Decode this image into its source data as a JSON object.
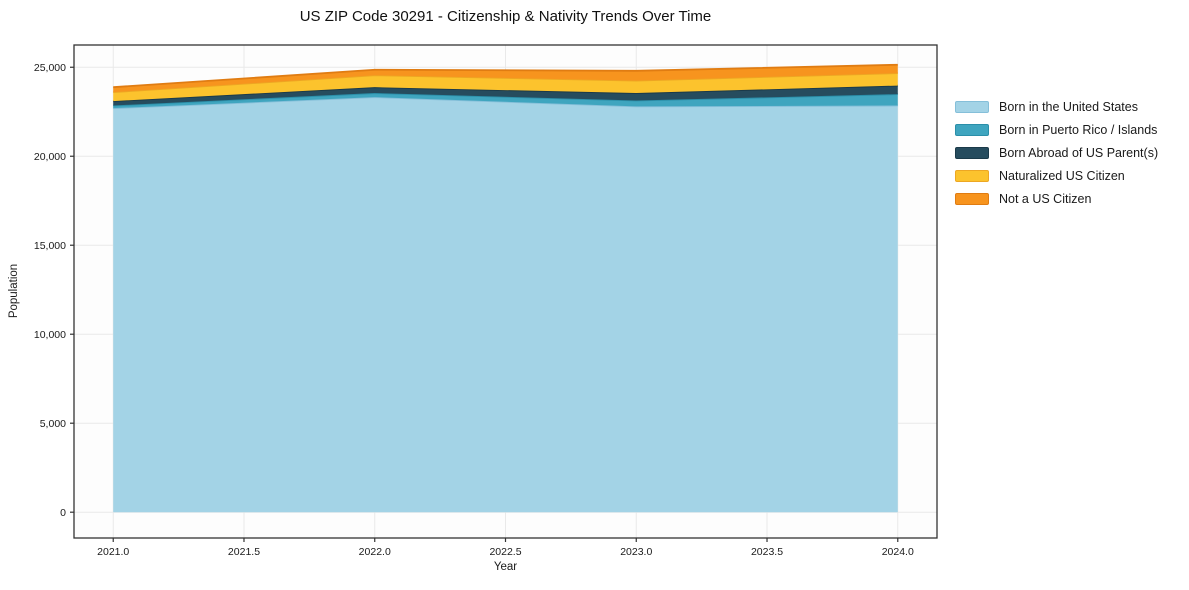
{
  "title": "US ZIP Code 30291 - Citizenship & Nativity Trends Over Time",
  "chart_data": {
    "type": "area",
    "stacked": true,
    "x": [
      2021,
      2022,
      2023,
      2024
    ],
    "series": [
      {
        "key": "born-in-us",
        "name": "Born in the United States",
        "values": [
          22700,
          23320,
          22800,
          22850
        ],
        "fill": "#a3d3e6",
        "edge": "#85bfd9"
      },
      {
        "key": "puerto-rico",
        "name": "Born in Puerto Rico / Islands",
        "values": [
          150,
          230,
          330,
          640
        ],
        "fill": "#3fa5bf",
        "edge": "#2b8fa9"
      },
      {
        "key": "born-abroad",
        "name": "Born Abroad of US Parent(s)",
        "values": [
          250,
          330,
          420,
          480
        ],
        "fill": "#264c5e",
        "edge": "#1b3a49"
      },
      {
        "key": "naturalized",
        "name": "Naturalized US Citizen",
        "values": [
          500,
          670,
          700,
          700
        ],
        "fill": "#fcc32d",
        "edge": "#eda723"
      },
      {
        "key": "not-citizen",
        "name": "Not a US Citizen",
        "values": [
          280,
          310,
          550,
          470
        ],
        "fill": "#f7941e",
        "edge": "#e07c12"
      }
    ],
    "xlabel": "Year",
    "ylabel": "Population",
    "xlim": [
      2020.85,
      2024.15
    ],
    "ylim": [
      -1450,
      26250
    ],
    "x_ticks": [
      {
        "value": 2021.0,
        "label": "2021.0"
      },
      {
        "value": 2021.5,
        "label": "2021.5"
      },
      {
        "value": 2022.0,
        "label": "2022.0"
      },
      {
        "value": 2022.5,
        "label": "2022.5"
      },
      {
        "value": 2023.0,
        "label": "2023.0"
      },
      {
        "value": 2023.5,
        "label": "2023.5"
      },
      {
        "value": 2024.0,
        "label": "2024.0"
      }
    ],
    "y_ticks": [
      {
        "value": 0,
        "label": "0"
      },
      {
        "value": 5000,
        "label": "5,000"
      },
      {
        "value": 10000,
        "label": "10,000"
      },
      {
        "value": 15000,
        "label": "15,000"
      },
      {
        "value": 20000,
        "label": "20,000"
      },
      {
        "value": 25000,
        "label": "25,000"
      }
    ],
    "grid": true,
    "legend_position": "right-outside"
  },
  "colors": {
    "figure_bg": "#ffffff",
    "plot_bg": "#fdfdfd",
    "grid": "#e9e9e9",
    "spine": "#333333",
    "text": "#1a1a1a"
  }
}
